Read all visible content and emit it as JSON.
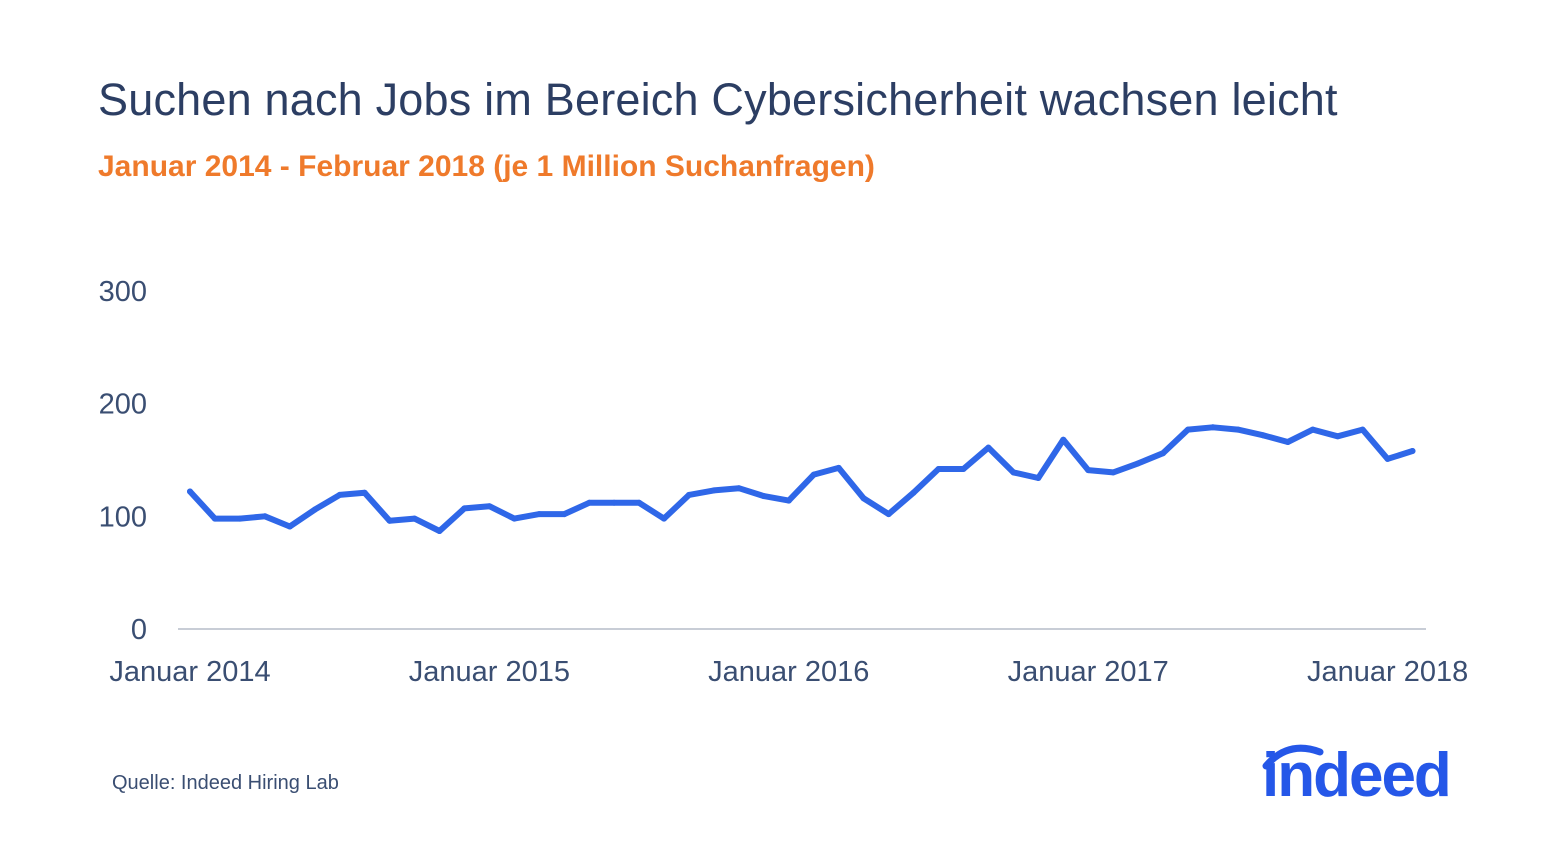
{
  "header": {
    "title": "Suchen nach Jobs im Bereich Cybersicherheit wachsen leicht",
    "subtitle": "Januar 2014 - Februar 2018 (je 1 Million Suchanfragen)"
  },
  "footer": {
    "source": "Quelle: Indeed Hiring Lab",
    "logo_text": "indeed"
  },
  "colors": {
    "line": "#2f67e8",
    "title": "#2c3e63",
    "subtitle": "#ef7a2b",
    "axis_text": "#3a4e72",
    "axis_line": "#c8cdd6",
    "logo": "#2557e8"
  },
  "chart_data": {
    "type": "line",
    "title": "Suchen nach Jobs im Bereich Cybersicherheit wachsen leicht",
    "subtitle": "Januar 2014 - Februar 2018 (je 1 Million Suchanfragen)",
    "xlabel": "",
    "ylabel": "",
    "ylim": [
      0,
      300
    ],
    "yticks": [
      0,
      100,
      200,
      300
    ],
    "x_start": "Januar 2014",
    "x_end": "Februar 2018",
    "xticks": [
      {
        "index": 0,
        "label": "Januar 2014"
      },
      {
        "index": 12,
        "label": "Januar 2015"
      },
      {
        "index": 24,
        "label": "Januar 2016"
      },
      {
        "index": 36,
        "label": "Januar 2017"
      },
      {
        "index": 48,
        "label": "Januar 2018"
      }
    ],
    "grid": false,
    "series": [
      {
        "values": [
          122,
          98,
          98,
          100,
          91,
          106,
          119,
          121,
          96,
          98,
          87,
          107,
          109,
          98,
          102,
          102,
          112,
          112,
          112,
          98,
          119,
          123,
          125,
          118,
          114,
          137,
          143,
          116,
          102,
          121,
          142,
          142,
          161,
          139,
          134,
          168,
          141,
          139,
          147,
          156,
          177,
          179,
          177,
          172,
          166,
          177,
          171,
          177,
          151,
          158
        ]
      }
    ]
  }
}
